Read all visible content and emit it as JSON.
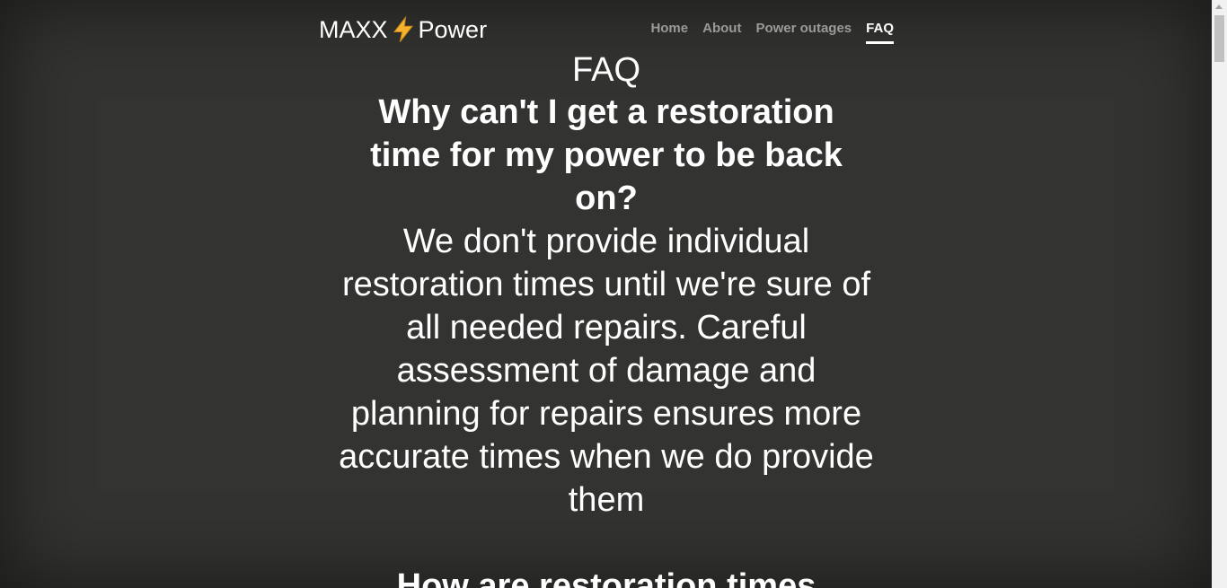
{
  "brand": {
    "left": "MAXX",
    "right": "Power",
    "bolt_icon": "lightning-bolt-icon",
    "bolt_color": "#f5b22b"
  },
  "nav": {
    "items": [
      {
        "label": "Home"
      },
      {
        "label": "About"
      },
      {
        "label": "Power outages"
      },
      {
        "label": "FAQ"
      }
    ],
    "active": "FAQ"
  },
  "main": {
    "title": "FAQ",
    "question": "Why can't I get a restoration time for my power to be back on?",
    "answer": "We don't provide individual restoration times until we're sure of all needed repairs. Careful assessment of damage and planning for repairs ensures more accurate times when we do provide them",
    "next_question_partial": "How are restoration times"
  },
  "colors": {
    "background": "#333331",
    "text": "#ffffff",
    "nav_inactive": "#9a9a9a"
  }
}
